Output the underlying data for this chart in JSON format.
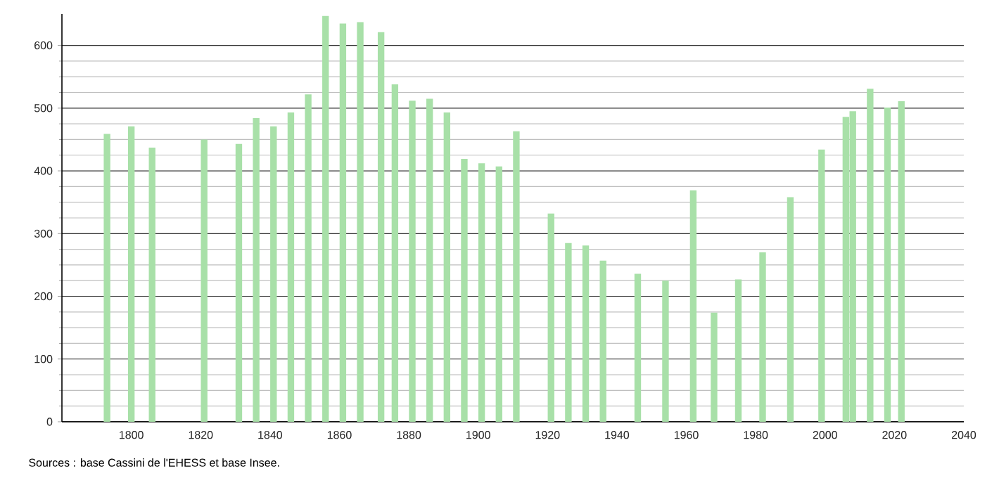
{
  "chart_data": {
    "type": "bar",
    "x": [
      1793,
      1800,
      1806,
      1821,
      1831,
      1836,
      1841,
      1846,
      1851,
      1856,
      1861,
      1866,
      1872,
      1876,
      1881,
      1886,
      1891,
      1896,
      1901,
      1906,
      1911,
      1921,
      1926,
      1931,
      1936,
      1946,
      1954,
      1962,
      1968,
      1975,
      1982,
      1990,
      1999,
      2006,
      2008,
      2013,
      2018,
      2022
    ],
    "values": [
      459,
      471,
      437,
      450,
      443,
      484,
      471,
      493,
      522,
      647,
      635,
      637,
      621,
      538,
      512,
      515,
      493,
      419,
      412,
      407,
      463,
      332,
      285,
      281,
      257,
      236,
      225,
      369,
      174,
      227,
      270,
      358,
      434,
      486,
      495,
      531,
      501,
      511
    ],
    "color": "#a8e0a8",
    "xlim": [
      1780,
      2040
    ],
    "ylim": [
      0,
      650
    ],
    "xticks": [
      1800,
      1820,
      1840,
      1860,
      1880,
      1900,
      1920,
      1940,
      1960,
      1980,
      2000,
      2020,
      2040
    ],
    "yticks": [
      0,
      100,
      200,
      300,
      400,
      500,
      600
    ],
    "grid": "y",
    "annotations": [
      "Sources : base Cassini de l'EHESS et base Insee."
    ]
  }
}
